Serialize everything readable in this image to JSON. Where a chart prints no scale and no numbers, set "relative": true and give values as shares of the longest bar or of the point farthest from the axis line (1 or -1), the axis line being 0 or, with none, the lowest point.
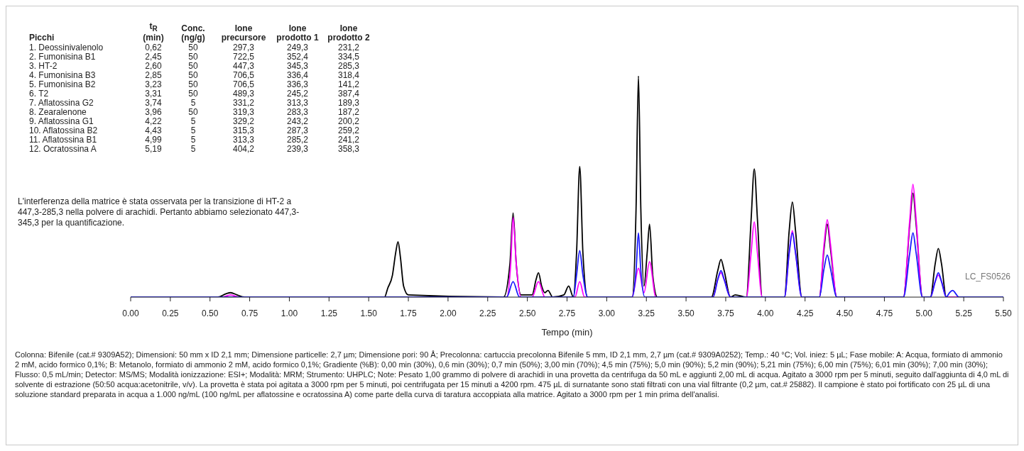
{
  "chart_data": {
    "type": "line",
    "relative": true,
    "tick_labels": "x",
    "marker": "none",
    "line_style": "solid",
    "xlabel": "Tempo (min)",
    "xlim": [
      0,
      5.5
    ],
    "xticks": [
      {
        "value": 0,
        "label": "0.00"
      },
      {
        "value": 0.25,
        "label": "0.25"
      },
      {
        "value": 0.5,
        "label": "0.50"
      },
      {
        "value": 0.75,
        "label": "0.75"
      },
      {
        "value": 1,
        "label": "1.00"
      },
      {
        "value": 1.25,
        "label": "1.25"
      },
      {
        "value": 1.5,
        "label": "1.50"
      },
      {
        "value": 1.75,
        "label": "1.75"
      },
      {
        "value": 2,
        "label": "2.00"
      },
      {
        "value": 2.25,
        "label": "2.25"
      },
      {
        "value": 2.5,
        "label": "2.50"
      },
      {
        "value": 2.75,
        "label": "2.75"
      },
      {
        "value": 3,
        "label": "3.00"
      },
      {
        "value": 3.25,
        "label": "3.25"
      },
      {
        "value": 3.5,
        "label": "3.50"
      },
      {
        "value": 3.75,
        "label": "3.75"
      },
      {
        "value": 4,
        "label": "4.00"
      },
      {
        "value": 4.25,
        "label": "4.25"
      },
      {
        "value": 4.5,
        "label": "4.50"
      },
      {
        "value": 4.75,
        "label": "4.75"
      },
      {
        "value": 5,
        "label": "5.00"
      },
      {
        "value": 5.25,
        "label": "5.25"
      },
      {
        "value": 5.5,
        "label": "5.50"
      }
    ],
    "series": [
      {
        "color": "#000000",
        "x": [
          0,
          0.55,
          0.6,
          0.63,
          0.67,
          0.72,
          1.6,
          1.62,
          1.65,
          1.67,
          1.685,
          1.7,
          1.72,
          1.75,
          2.35,
          2.39,
          2.41,
          2.43,
          2.46,
          2.53,
          2.555,
          2.57,
          2.59,
          2.61,
          2.63,
          2.66,
          2.73,
          2.76,
          2.79,
          2.81,
          2.83,
          2.85,
          2.88,
          3.16,
          3.185,
          3.2,
          3.215,
          3.235,
          3.255,
          3.27,
          3.29,
          3.32,
          3.66,
          3.7,
          3.72,
          3.74,
          3.78,
          3.81,
          3.88,
          3.91,
          3.93,
          3.95,
          3.98,
          4.12,
          4.15,
          4.17,
          4.19,
          4.23,
          4.34,
          4.37,
          4.39,
          4.41,
          4.45,
          4.87,
          4.91,
          4.93,
          4.95,
          4.99,
          5.04,
          5.07,
          5.09,
          5.11,
          5.14,
          5.5
        ],
        "values": [
          0,
          0,
          0.015,
          0.02,
          0.01,
          0,
          0,
          0.04,
          0.1,
          0.2,
          0.25,
          0.18,
          0.05,
          0.01,
          0,
          0.15,
          0.38,
          0.15,
          0.01,
          0.01,
          0.08,
          0.11,
          0.05,
          0.02,
          0.03,
          0,
          0.01,
          0.05,
          0,
          0.2,
          0.59,
          0.2,
          0,
          0,
          0.4,
          1,
          0.4,
          0.05,
          0.2,
          0.33,
          0.1,
          0,
          0,
          0.12,
          0.17,
          0.12,
          0,
          0.01,
          0,
          0.35,
          0.58,
          0.35,
          0,
          0,
          0.3,
          0.43,
          0.3,
          0,
          0,
          0.22,
          0.33,
          0.22,
          0,
          0,
          0.33,
          0.47,
          0.33,
          0,
          0,
          0.15,
          0.22,
          0.15,
          0,
          0
        ]
      },
      {
        "color": "#ff00ff",
        "x": [
          0,
          0.58,
          0.63,
          0.68,
          2.37,
          2.395,
          2.41,
          2.43,
          2.46,
          2.53,
          2.57,
          2.61,
          2.8,
          2.83,
          2.86,
          3.16,
          3.2,
          3.235,
          3.27,
          3.31,
          3.67,
          3.7,
          3.72,
          3.74,
          3.78,
          3.88,
          3.91,
          3.93,
          3.95,
          3.98,
          4.12,
          4.15,
          4.17,
          4.19,
          4.23,
          4.34,
          4.37,
          4.39,
          4.41,
          4.45,
          4.87,
          4.91,
          4.93,
          4.95,
          4.99,
          5.04,
          5.07,
          5.09,
          5.11,
          5.14,
          5.5
        ],
        "values": [
          0,
          0,
          0.01,
          0,
          0,
          0.15,
          0.36,
          0.15,
          0,
          0,
          0.07,
          0,
          0,
          0.07,
          0,
          0,
          0.13,
          0.02,
          0.16,
          0,
          0,
          0.08,
          0.11,
          0.08,
          0,
          0,
          0.2,
          0.34,
          0.2,
          0,
          0,
          0.2,
          0.3,
          0.2,
          0,
          0,
          0.24,
          0.35,
          0.24,
          0,
          0,
          0.35,
          0.51,
          0.35,
          0,
          0,
          0.07,
          0.1,
          0.07,
          0,
          0
        ]
      },
      {
        "color": "#1a1aff",
        "x": [
          0,
          2.37,
          2.41,
          2.45,
          2.79,
          2.81,
          2.83,
          2.85,
          2.88,
          3.16,
          3.185,
          3.2,
          3.215,
          3.24,
          3.67,
          3.7,
          3.72,
          3.74,
          3.78,
          4.12,
          4.15,
          4.17,
          4.19,
          4.23,
          4.34,
          4.37,
          4.39,
          4.41,
          4.45,
          4.87,
          4.91,
          4.93,
          4.95,
          4.99,
          5.04,
          5.07,
          5.09,
          5.11,
          5.14,
          5.16,
          5.18,
          5.22,
          5.5
        ],
        "values": [
          0,
          0,
          0.07,
          0,
          0,
          0.1,
          0.21,
          0.1,
          0,
          0,
          0.12,
          0.29,
          0.12,
          0,
          0,
          0.08,
          0.12,
          0.08,
          0,
          0,
          0.2,
          0.29,
          0.2,
          0,
          0,
          0.13,
          0.19,
          0.13,
          0,
          0,
          0.2,
          0.29,
          0.2,
          0,
          0,
          0.07,
          0.11,
          0.07,
          0,
          0.02,
          0.03,
          0,
          0
        ]
      }
    ],
    "annotations": [
      "Picchi",
      "t$_{R}$\n(min)",
      "Conc.\n(ng/g)",
      "Ione\nprecursore",
      "Ione\nprodotto 1",
      "Ione\nprodotto 2",
      "1. Deossinivalenolo",
      "0,62",
      "50",
      "297,3",
      "249,3",
      "231,2",
      "2. Fumonisina B1",
      "2,45",
      "50",
      "722,5",
      "352,4",
      "334,5",
      "3. HT-2",
      "2,60",
      "50",
      "447,3",
      "345,3",
      "285,3",
      "4. Fumonisina B3",
      "2,85",
      "50",
      "706,5",
      "336,4",
      "318,4",
      "5. Fumonisina B2",
      "3,23",
      "50",
      "706,5",
      "336,3",
      "141,2",
      "6. T2",
      "3,31",
      "50",
      "489,3",
      "245,2",
      "387,4",
      "7. Aflatossina G2",
      "3,74",
      "5",
      "331,2",
      "313,3",
      "189,3",
      "8. Zearalenone",
      "3,96",
      "50",
      "319,3",
      "283,3",
      "187,2",
      "9. Aflatossina G1",
      "4,22",
      "5",
      "329,2",
      "243,2",
      "200,2",
      "10. Aflatossina B2",
      "4,43",
      "5",
      "315,3",
      "287,3",
      "259,2",
      "11. Aflatossina B1",
      "4,99",
      "5",
      "313,3",
      "285,2",
      "241,2",
      "12. Ocratossina A",
      "5,19",
      "5",
      "404,2",
      "239,3",
      "358,3",
      "L'interferenza della matrice è stata osservata per la transizione di HT-2 a 447,3-285,3 nella polvere di arachidi. Pertanto abbiamo selezionato 447,3-345,3 per la quantificazione.",
      "LC_FS0526",
      "Colonna: Bifenile (cat.# 9309A52); Dimensioni: 50 mm x ID 2,1 mm; Dimensione particelle: 2,7 µm; Dimensione pori: 90 Å; Precolonna: cartuccia precolonna Bifenile 5 mm, ID 2,1 mm, 2,7 µm (cat.# 9309A0252); Temp.: 40 °C; Vol. iniez: 5 µL; Fase mobile: A: Acqua, formiato di ammonio 2 mM, acido formico 0,1%; B: Metanolo, formiato di ammonio 2 mM, acido formico 0,1%; Gradiente (%B): 0,00 min (30%), 0,6 min (30%); 0,7 min (50%); 3,00 min (70%); 4,5 min (75%); 5,0 min (90%); 5,2 min (90%); 5,21 min (75%); 6,00 min (75%); 6,01 min (30%); 7,00 min (30%); Flusso: 0,5 mL/min; Detector: MS/MS; Modalità ionizzazione: ESI+; Modalità: MRM; Strumento: UHPLC; Note: Pesato 1,00 grammo di polvere di arachidi in una provetta da centrifuga da 50 mL e aggiunti 2,00 mL di acqua. Agitato a 3000 rpm per 5 minuti, seguito dall'aggiunta di 4,0 mL di solvente di estrazione (50:50 acqua:acetonitrile, v/v). La provetta è stata poi agitata a 3000 rpm per 5 minuti, poi centrifugata per 15 minuti a 4200 rpm. 475 µL di surnatante sono stati filtrati con una vial filtrante (0,2 µm, cat.# 25882). Il campione è stato poi fortificato con 25 µL di una soluzione standard preparata in acqua a 1.000 ng/mL (100 ng/mL per aflatossine e ocratossina A) come parte della curva di taratura accoppiata alla matrice. Agitato a 3000 rpm per 1 min prima dell'analisi."
    ]
  }
}
